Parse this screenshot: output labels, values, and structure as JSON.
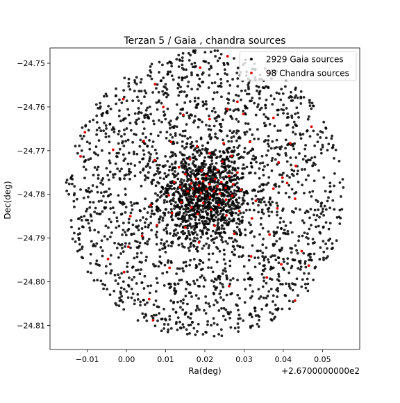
{
  "chart_data": {
    "type": "scatter",
    "title": "Terzan 5 / Gaia , chandra sources",
    "xlabel": "Ra(deg)",
    "ylabel": "Dec(deg)",
    "x_offset_label": "+2.6700000000e2",
    "xlim": [
      -0.0195,
      0.0595
    ],
    "ylim": [
      -24.8155,
      -24.7465
    ],
    "xticks": [
      -0.01,
      0.0,
      0.01,
      0.02,
      0.03,
      0.04,
      0.05
    ],
    "xtick_labels": [
      "−0.01",
      "0.00",
      "0.01",
      "0.02",
      "0.03",
      "0.04",
      "0.05"
    ],
    "yticks": [
      -24.75,
      -24.76,
      -24.77,
      -24.78,
      -24.79,
      -24.8,
      -24.81
    ],
    "ytick_labels": [
      "−24.75",
      "−24.76",
      "−24.77",
      "−24.78",
      "−24.79",
      "−24.80",
      "−24.81"
    ],
    "grid": false,
    "legend_position": "top-right",
    "series": [
      {
        "name": "2929 Gaia sources",
        "color": "#000000",
        "count": 2929,
        "field": {
          "center": [
            0.02,
            -24.78
          ],
          "radius_x": 0.0355,
          "radius_y": 0.033,
          "core_fraction": 0.32,
          "core_sigma": 0.006
        },
        "points": [
          [
            0.02,
            -24.78
          ],
          [
            0.0212,
            -24.7784
          ],
          [
            0.0187,
            -24.7812
          ],
          [
            0.0225,
            -24.7773
          ],
          [
            0.0176,
            -24.779
          ],
          [
            0.0233,
            -24.7821
          ],
          [
            0.016,
            -24.7766
          ],
          [
            0.0247,
            -24.7799
          ],
          [
            0.0191,
            -24.7748
          ],
          [
            0.0206,
            -24.7855
          ],
          [
            0.0142,
            -24.782
          ],
          [
            0.0268,
            -24.776
          ],
          [
            0.0118,
            -24.7741
          ],
          [
            0.0299,
            -24.7842
          ],
          [
            0.0078,
            -24.7886
          ],
          [
            0.0324,
            -24.7712
          ],
          [
            -0.0147,
            -24.78
          ],
          [
            0.0547,
            -24.7805
          ],
          [
            0.0202,
            -24.8115
          ],
          [
            0.0197,
            -24.7495
          ],
          [
            -0.01,
            -24.768
          ],
          [
            0.0495,
            -24.7656
          ],
          [
            -0.0091,
            -24.7937
          ],
          [
            0.0503,
            -24.795
          ],
          [
            0.0044,
            -24.8042
          ],
          [
            0.0385,
            -24.8065
          ],
          [
            0.005,
            -24.7568
          ],
          [
            0.035,
            -24.754
          ]
        ]
      },
      {
        "name": "98 Chandra sources",
        "color": "#e00000",
        "count": 98,
        "points": [
          [
            0.0258,
            -24.7484
          ],
          [
            0.0364,
            -24.7521
          ],
          [
            0.0188,
            -24.751
          ],
          [
            0.0073,
            -24.7548
          ],
          [
            -0.0008,
            -24.7582
          ],
          [
            0.0283,
            -24.7588
          ],
          [
            0.0094,
            -24.76
          ],
          [
            0.0258,
            -24.7605
          ],
          [
            0.0298,
            -24.7616
          ],
          [
            0.0375,
            -24.7625
          ],
          [
            0.0145,
            -24.7618
          ],
          [
            0.0212,
            -24.7628
          ],
          [
            -0.0106,
            -24.7658
          ],
          [
            0.0472,
            -24.7645
          ],
          [
            0.0044,
            -24.7678
          ],
          [
            0.0114,
            -24.768
          ],
          [
            0.0248,
            -24.7683
          ],
          [
            0.0315,
            -24.768
          ],
          [
            0.0418,
            -24.7683
          ],
          [
            0.018,
            -24.769
          ],
          [
            -0.0034,
            -24.7698
          ],
          [
            0.0212,
            -24.7706
          ],
          [
            0.0268,
            -24.7712
          ],
          [
            0.0072,
            -24.7722
          ],
          [
            0.0162,
            -24.772
          ],
          [
            0.0245,
            -24.7725
          ],
          [
            0.0388,
            -24.7727
          ],
          [
            0.0432,
            -24.7735
          ],
          [
            -0.0117,
            -24.7713
          ],
          [
            0.0134,
            -24.7738
          ],
          [
            0.0192,
            -24.7745
          ],
          [
            0.0232,
            -24.7744
          ],
          [
            0.0283,
            -24.775
          ],
          [
            0.015,
            -24.7754
          ],
          [
            0.0203,
            -24.7758
          ],
          [
            0.0262,
            -24.7758
          ],
          [
            0.0398,
            -24.7762
          ],
          [
            0.0178,
            -24.7765
          ],
          [
            0.0226,
            -24.7765
          ],
          [
            0.0196,
            -24.777
          ],
          [
            0.0242,
            -24.7772
          ],
          [
            0.0122,
            -24.7772
          ],
          [
            0.0165,
            -24.7775
          ],
          [
            0.0212,
            -24.7777
          ],
          [
            0.0272,
            -24.7777
          ],
          [
            0.041,
            -24.7774
          ],
          [
            0.0185,
            -24.778
          ],
          [
            0.0232,
            -24.7782
          ],
          [
            0.0137,
            -24.7783
          ],
          [
            0.0253,
            -24.7785
          ],
          [
            0.017,
            -24.7787
          ],
          [
            0.0205,
            -24.7788
          ],
          [
            0.0292,
            -24.779
          ],
          [
            0.0375,
            -24.7787
          ],
          [
            0.0223,
            -24.7793
          ],
          [
            0.0156,
            -24.7793
          ],
          [
            0.019,
            -24.7797
          ],
          [
            0.0238,
            -24.7798
          ],
          [
            0.027,
            -24.7803
          ],
          [
            0.0108,
            -24.7802
          ],
          [
            0.0178,
            -24.7805
          ],
          [
            0.0213,
            -24.7807
          ],
          [
            0.0254,
            -24.7812
          ],
          [
            0.033,
            -24.7815
          ],
          [
            0.043,
            -24.781
          ],
          [
            0.014,
            -24.7818
          ],
          [
            0.0196,
            -24.782
          ],
          [
            0.0236,
            -24.7824
          ],
          [
            0.0062,
            -24.7825
          ],
          [
            0.0166,
            -24.783
          ],
          [
            0.0216,
            -24.7835
          ],
          [
            0.0288,
            -24.7838
          ],
          [
            0.0385,
            -24.7832
          ],
          [
            0.0116,
            -24.7843
          ],
          [
            0.0182,
            -24.7845
          ],
          [
            0.0255,
            -24.7848
          ],
          [
            0.001,
            -24.785
          ],
          [
            0.032,
            -24.7855
          ],
          [
            0.0078,
            -24.787
          ],
          [
            0.0225,
            -24.7872
          ],
          [
            0.015,
            -24.7876
          ],
          [
            0.004,
            -24.7895
          ],
          [
            0.0275,
            -24.789
          ],
          [
            0.0365,
            -24.7892
          ],
          [
            0.0185,
            -24.791
          ],
          [
            0.0005,
            -24.792
          ],
          [
            0.0447,
            -24.793
          ],
          [
            0.0318,
            -24.7942
          ],
          [
            -0.0047,
            -24.7948
          ],
          [
            0.0395,
            -24.796
          ],
          [
            0.011,
            -24.7968
          ],
          [
            0.0465,
            -24.7963
          ],
          [
            -0.0006,
            -24.7978
          ],
          [
            0.0358,
            -24.799
          ],
          [
            0.0262,
            -24.801
          ],
          [
            0.0058,
            -24.804
          ],
          [
            0.043,
            -24.8043
          ],
          [
            0.0068,
            -24.8088
          ]
        ]
      }
    ]
  }
}
